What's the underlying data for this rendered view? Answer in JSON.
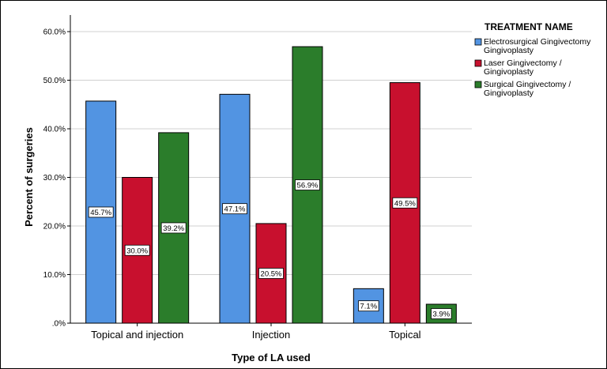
{
  "chart_data": {
    "type": "bar",
    "title": "",
    "xlabel": "Type of LA used",
    "ylabel": "Percent of surgeries",
    "ylim": [
      0,
      60
    ],
    "y_ticks": [
      ".0%",
      "10.0%",
      "20.0%",
      "30.0%",
      "40.0%",
      "50.0%",
      "60.0%"
    ],
    "categories": [
      "Topical and injection",
      "Injection",
      "Topical"
    ],
    "legend_title": "TREATMENT NAME",
    "legend_placement": "right",
    "grid": true,
    "series": [
      {
        "name": "Electrosurgical Gingivectomy Gingivoplasty",
        "name_lines": [
          "Electrosurgical Gingivectomy",
          "Gingivoplasty"
        ],
        "color": "#5294e2",
        "values": [
          45.7,
          47.1,
          7.1
        ],
        "labels": [
          "45.7%",
          "47.1%",
          "7.1%"
        ]
      },
      {
        "name": "Laser Gingivectomy / Gingivoplasty",
        "name_lines": [
          "Laser Gingivectomy /",
          "Gingivoplasty"
        ],
        "color": "#c8102e",
        "values": [
          30.0,
          20.5,
          49.5
        ],
        "labels": [
          "30.0%",
          "20.5%",
          "49.5%"
        ]
      },
      {
        "name": "Surgical Gingivectomy / Gingivoplasty",
        "name_lines": [
          "Surgical Gingivectomy /",
          "Gingivoplasty"
        ],
        "color": "#2b7d2b",
        "values": [
          39.2,
          56.9,
          3.9
        ],
        "labels": [
          "39.2%",
          "56.9%",
          "3.9%"
        ]
      }
    ]
  }
}
